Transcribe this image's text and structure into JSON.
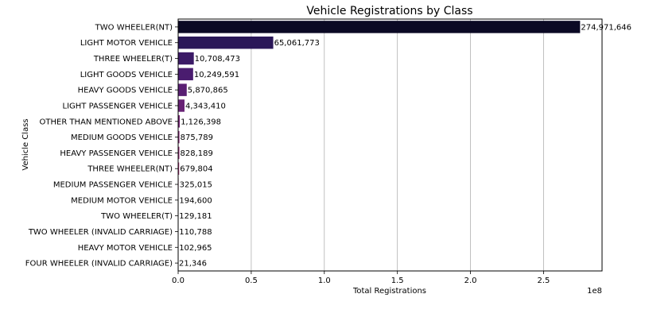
{
  "chart_data": {
    "type": "bar",
    "orientation": "horizontal",
    "title": "Vehicle Registrations by Class",
    "xlabel": "Total Registrations",
    "ylabel": "Vehicle Class",
    "x_offset_text": "1e8",
    "xlim": [
      0,
      290000000
    ],
    "x_ticks": [
      0,
      50000000,
      100000000,
      150000000,
      200000000,
      250000000
    ],
    "x_tick_labels": [
      "0.0",
      "0.5",
      "1.0",
      "1.5",
      "2.0",
      "2.5"
    ],
    "grid": "x-axis vertical gridlines",
    "categories": [
      "TWO WHEELER(NT)",
      "LIGHT MOTOR VEHICLE",
      "THREE WHEELER(T)",
      "LIGHT GOODS VEHICLE",
      "HEAVY GOODS VEHICLE",
      "LIGHT PASSENGER VEHICLE",
      "OTHER THAN MENTIONED ABOVE",
      "MEDIUM GOODS VEHICLE",
      "HEAVY PASSENGER VEHICLE",
      "THREE WHEELER(NT)",
      "MEDIUM PASSENGER VEHICLE",
      "MEDIUM MOTOR VEHICLE",
      "TWO WHEELER(T)",
      "TWO WHEELER (INVALID CARRIAGE)",
      "HEAVY MOTOR VEHICLE",
      "FOUR WHEELER (INVALID CARRIAGE)"
    ],
    "values": [
      274971646,
      65061773,
      10708473,
      10249591,
      5870865,
      4343410,
      1126398,
      875789,
      828189,
      679804,
      325015,
      194600,
      129181,
      110788,
      102965,
      21346
    ],
    "value_labels": [
      "274,971,646",
      "65,061,773",
      "10,708,473",
      "10,249,591",
      "5,870,865",
      "4,343,410",
      "1,126,398",
      "875,789",
      "828,189",
      "679,804",
      "325,015",
      "194,600",
      "129,181",
      "110,788",
      "102,965",
      "21,346"
    ],
    "colors": [
      "#0b0924",
      "#2a1758",
      "#3b1a66",
      "#4a1c6f",
      "#591f73",
      "#682275",
      "#762576",
      "#852876",
      "#942b76",
      "#a32e75",
      "#b23172",
      "#c0366e",
      "#cd3b69",
      "#d94263",
      "#e34b5d",
      "#ec5757"
    ]
  }
}
